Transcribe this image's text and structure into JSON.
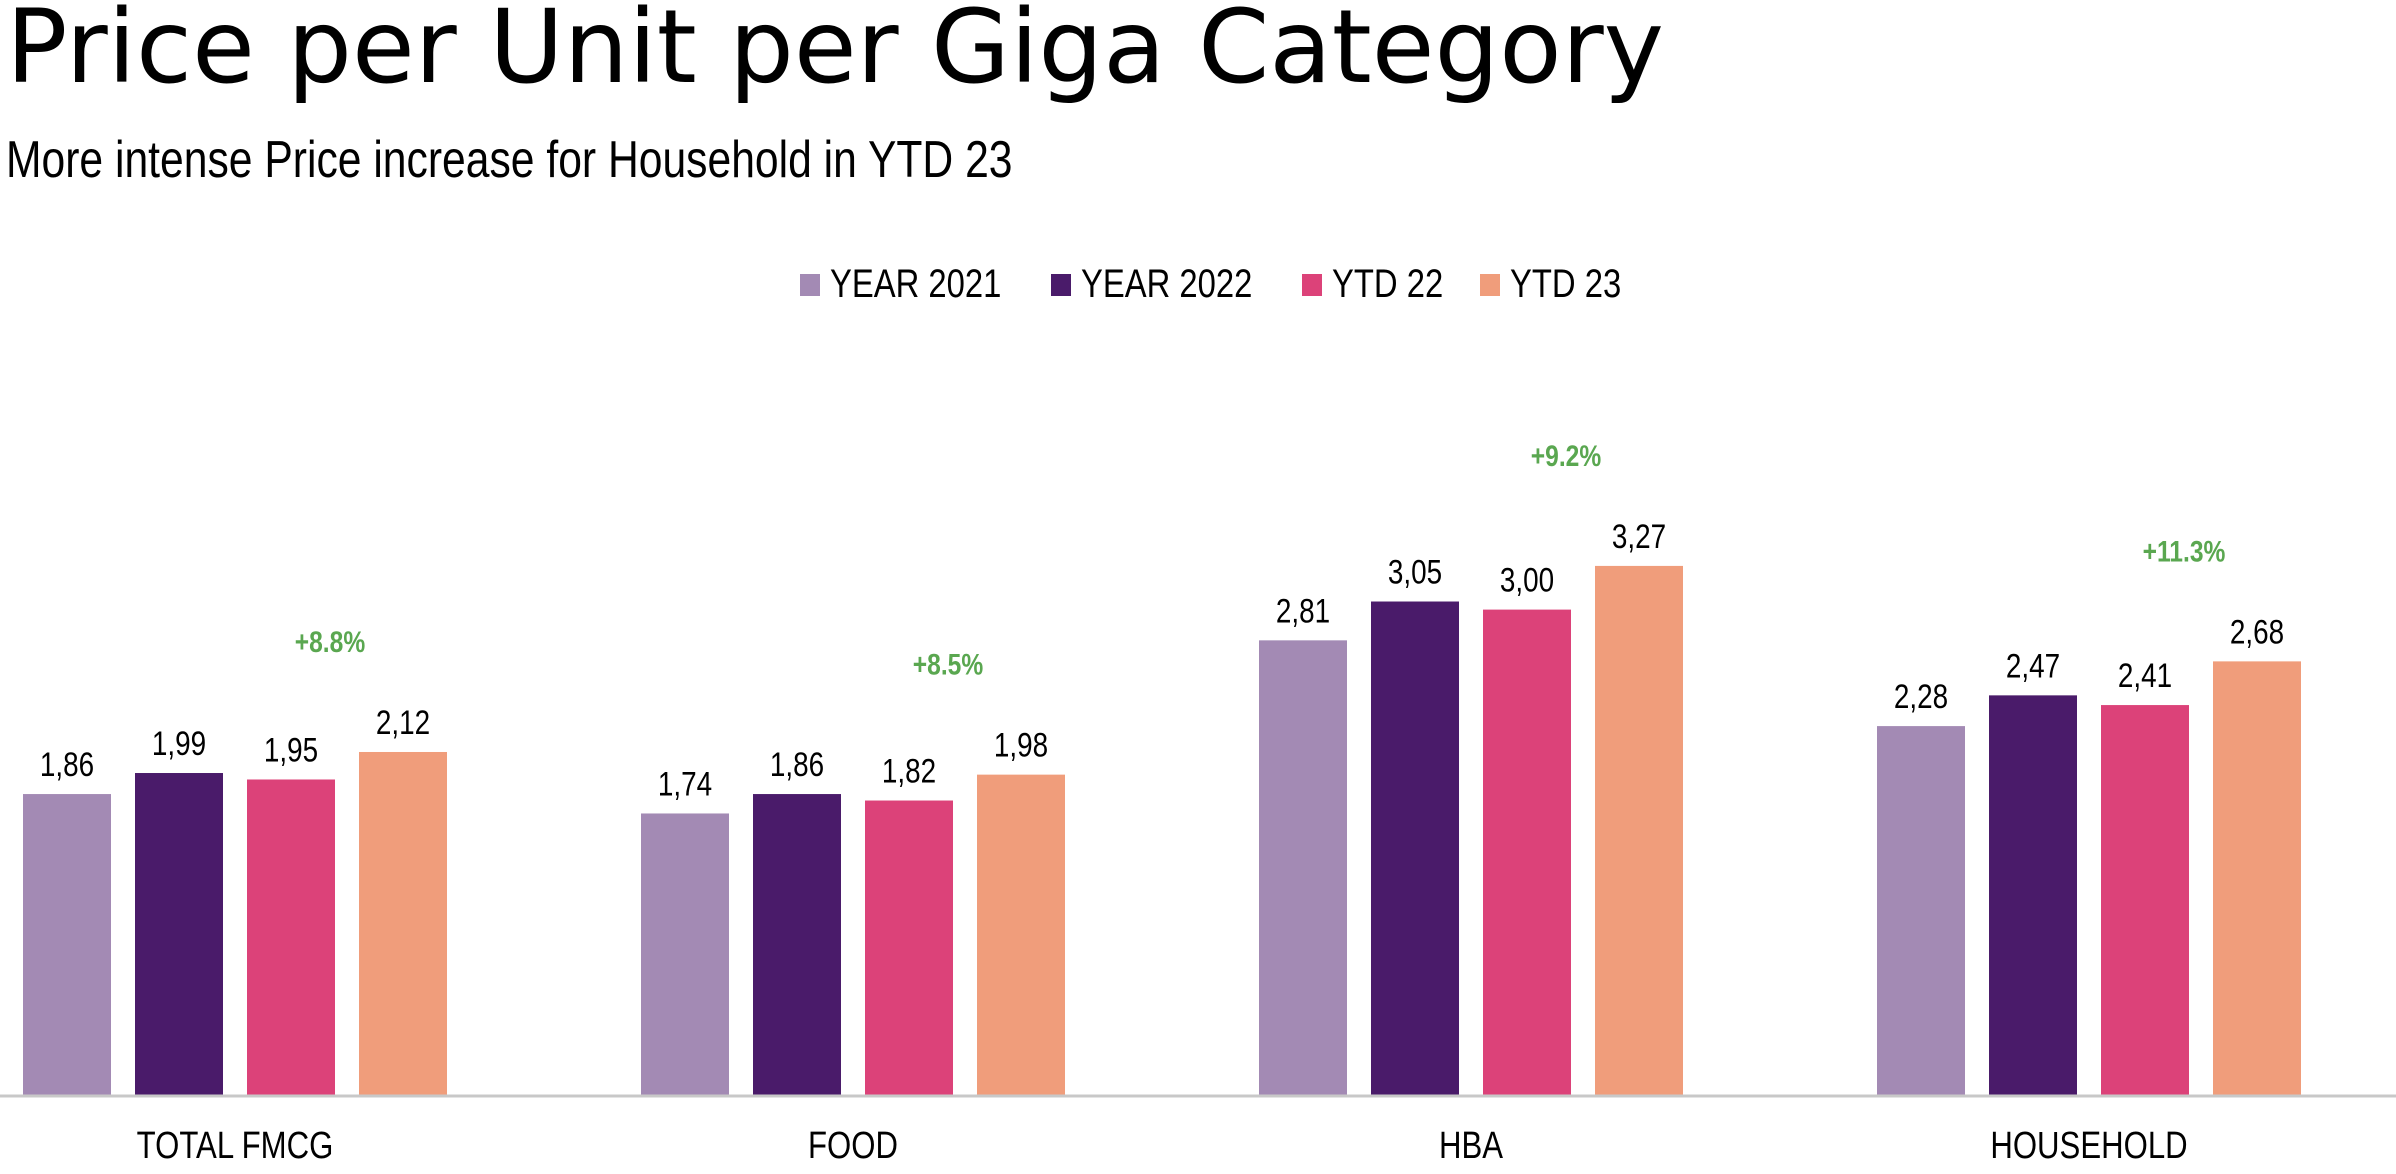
{
  "header": {
    "title": "Price per Unit per Giga Category",
    "subtitle": "More intense Price increase for Household in YTD 23"
  },
  "chart_data": {
    "type": "bar",
    "title": "Price per Unit per Giga Category",
    "subtitle": "More intense Price increase for Household in YTD 23",
    "xlabel": "",
    "ylabel": "",
    "ylim": [
      0,
      3.6
    ],
    "grid": false,
    "legend_position": "top-center",
    "categories": [
      "TOTAL FMCG",
      "FOOD",
      "HBA",
      "HOUSEHOLD"
    ],
    "series": [
      {
        "name": "YEAR 2021",
        "color": "#a38ab4",
        "values": [
          1.86,
          1.74,
          2.81,
          2.28
        ],
        "labels": [
          "1,86",
          "1,74",
          "2,81",
          "2,28"
        ]
      },
      {
        "name": "YEAR 2022",
        "color": "#4a1b6a",
        "values": [
          1.99,
          1.86,
          3.05,
          2.47
        ],
        "labels": [
          "1,99",
          "1,86",
          "3,05",
          "2,47"
        ]
      },
      {
        "name": "YTD 22",
        "color": "#dc4279",
        "values": [
          1.95,
          1.82,
          3.0,
          2.41
        ],
        "labels": [
          "1,95",
          "1,82",
          "3,00",
          "2,41"
        ]
      },
      {
        "name": "YTD 23",
        "color": "#f09d7b",
        "values": [
          2.12,
          1.98,
          3.27,
          2.68
        ],
        "labels": [
          "2,12",
          "1,98",
          "3,27",
          "2,68"
        ]
      }
    ],
    "annotations": [
      {
        "category": "TOTAL FMCG",
        "text": "+8.8%",
        "color": "#5aa750"
      },
      {
        "category": "FOOD",
        "text": "+8.5%",
        "color": "#5aa750"
      },
      {
        "category": "HBA",
        "text": "+9.2%",
        "color": "#5aa750"
      },
      {
        "category": "HOUSEHOLD",
        "text": "+11.3%",
        "color": "#5aa750"
      }
    ],
    "axis_color": "#c8c8c8"
  }
}
